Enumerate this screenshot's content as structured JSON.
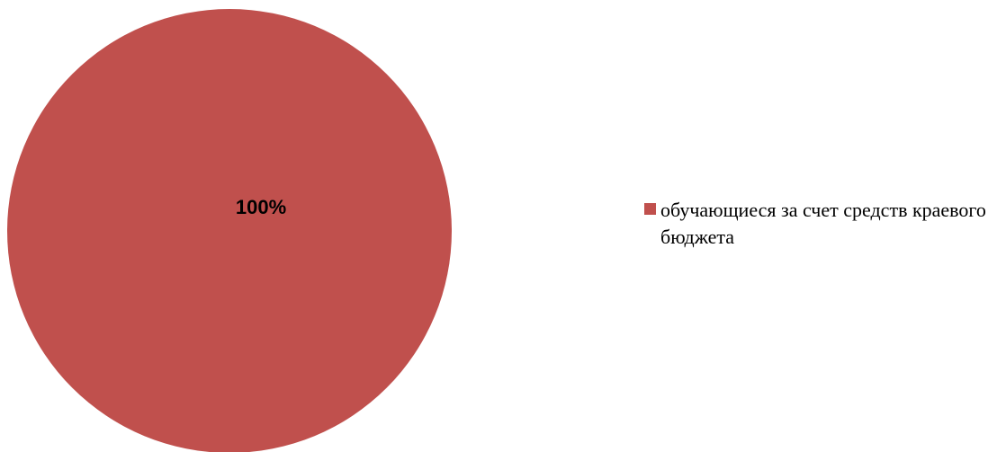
{
  "chart_data": {
    "type": "pie",
    "categories": [
      "обучающиеся за счет средств краевого бюджета"
    ],
    "values": [
      100
    ],
    "data_labels": [
      "100%"
    ],
    "colors": [
      "#c0504d"
    ],
    "legend_position": "right",
    "title": ""
  }
}
